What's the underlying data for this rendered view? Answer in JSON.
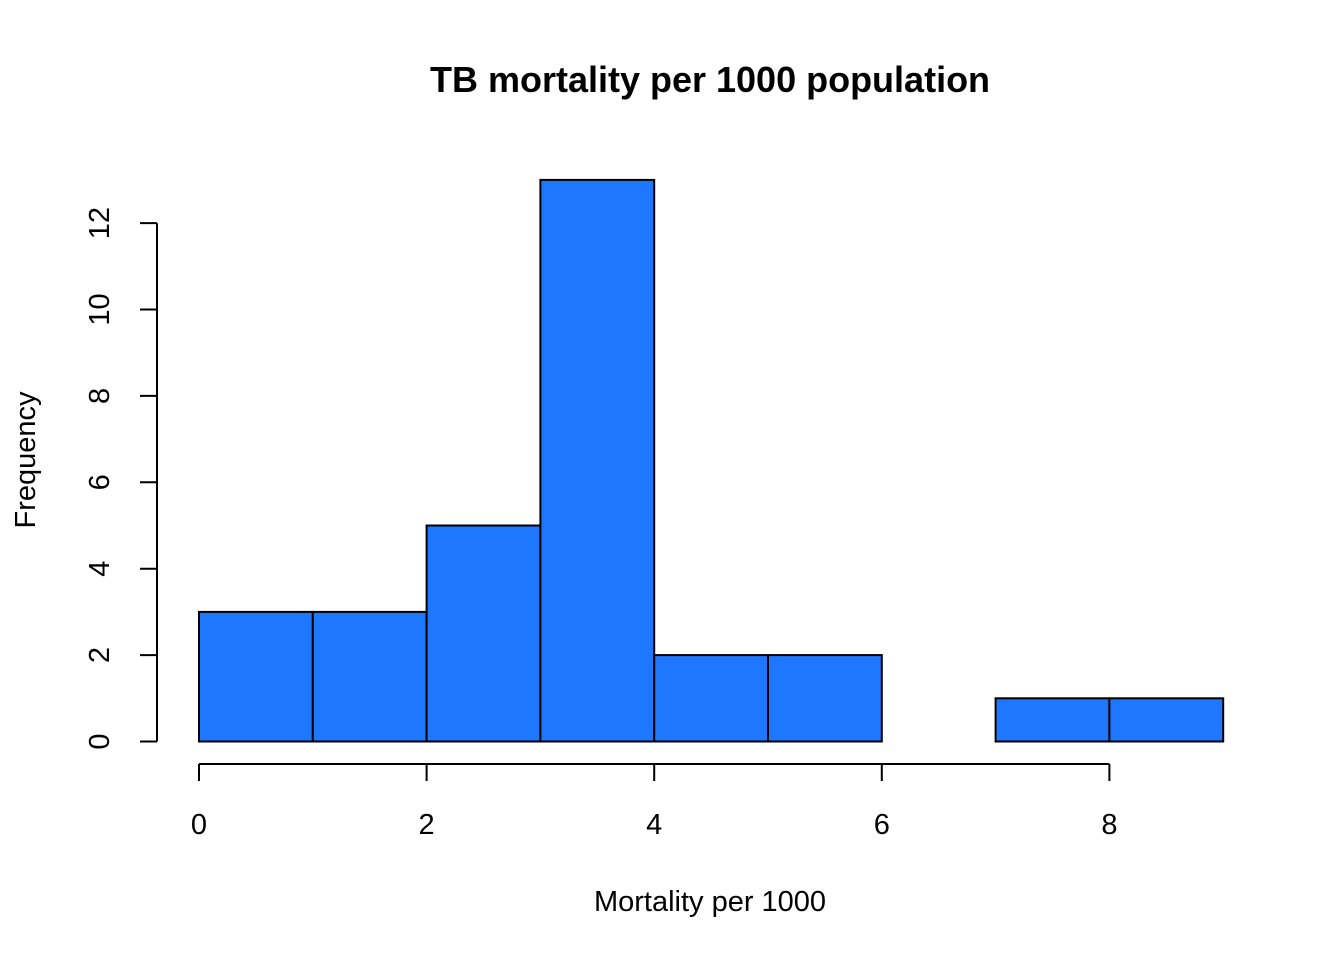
{
  "chart_data": {
    "type": "bar",
    "title": "TB mortality per 1000 population",
    "xlabel": "Mortality per 1000",
    "ylabel": "Frequency",
    "bins": [
      {
        "start": 0,
        "end": 1,
        "count": 3
      },
      {
        "start": 1,
        "end": 2,
        "count": 3
      },
      {
        "start": 2,
        "end": 3,
        "count": 5
      },
      {
        "start": 3,
        "end": 4,
        "count": 13
      },
      {
        "start": 4,
        "end": 5,
        "count": 2
      },
      {
        "start": 5,
        "end": 6,
        "count": 2
      },
      {
        "start": 6,
        "end": 7,
        "count": 0
      },
      {
        "start": 7,
        "end": 8,
        "count": 1
      },
      {
        "start": 8,
        "end": 9,
        "count": 1
      }
    ],
    "xlim": [
      0,
      9
    ],
    "ylim": [
      0,
      13
    ],
    "x_ticks": [
      0,
      2,
      4,
      6,
      8
    ],
    "y_ticks": [
      0,
      2,
      4,
      6,
      8,
      10,
      12
    ],
    "bar_color": "#1e78ff",
    "grid": false,
    "legend": "none"
  }
}
